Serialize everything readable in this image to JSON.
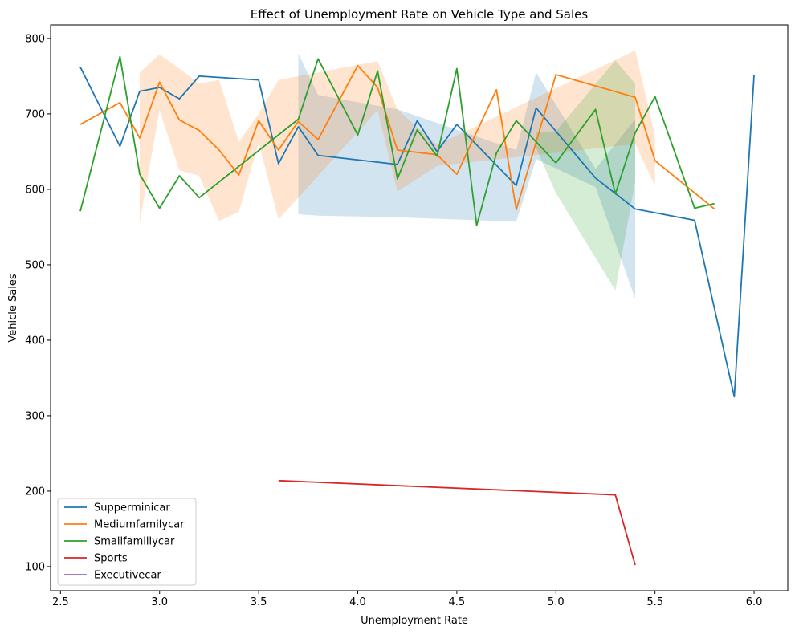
{
  "chart_data": {
    "type": "line",
    "title": "Effect of Unemployment Rate on Vehicle Type and Sales",
    "xlabel": "Unemployment Rate",
    "ylabel": "Vehicle Sales",
    "xlim": [
      2.45,
      6.17
    ],
    "ylim": [
      68,
      818
    ],
    "xticks": [
      2.5,
      3.0,
      3.5,
      4.0,
      4.5,
      5.0,
      5.5,
      6.0
    ],
    "xtick_labels": [
      "2.5",
      "3.0",
      "3.5",
      "4.0",
      "4.5",
      "5.0",
      "5.5",
      "6.0"
    ],
    "yticks": [
      100,
      200,
      300,
      400,
      500,
      600,
      700,
      800
    ],
    "ytick_labels": [
      "100",
      "200",
      "300",
      "400",
      "500",
      "600",
      "700",
      "800"
    ],
    "grid": false,
    "legend_position": "lower-left",
    "series": [
      {
        "name": "Supperminicar",
        "color": "#1f77b4",
        "x": [
          2.6,
          2.8,
          2.9,
          3.0,
          3.1,
          3.2,
          3.5,
          3.6,
          3.7,
          3.8,
          4.2,
          4.3,
          4.4,
          4.5,
          4.8,
          4.9,
          5.2,
          5.4,
          5.7,
          5.9,
          6.0
        ],
        "y": [
          762,
          657,
          730,
          735,
          720,
          750,
          745,
          634,
          683,
          645,
          633,
          691,
          650,
          686,
          605,
          708,
          615,
          574,
          559,
          325,
          751
        ],
        "band": {
          "x": [
            3.7,
            3.8,
            4.2,
            4.8,
            4.9,
            5.2,
            5.4
          ],
          "lower": [
            567,
            565,
            563,
            557,
            640,
            603,
            455
          ],
          "upper": [
            780,
            725,
            706,
            652,
            755,
            627,
            693
          ]
        }
      },
      {
        "name": "Mediumfamilycar",
        "color": "#ff7f0e",
        "x": [
          2.6,
          2.8,
          2.9,
          3.0,
          3.1,
          3.2,
          3.3,
          3.4,
          3.5,
          3.6,
          3.7,
          3.8,
          4.0,
          4.1,
          4.2,
          4.4,
          4.5,
          4.7,
          4.8,
          5.0,
          5.4,
          5.5,
          5.8
        ],
        "y": [
          686,
          715,
          668,
          742,
          692,
          678,
          652,
          619,
          691,
          652,
          690,
          666,
          764,
          735,
          652,
          646,
          620,
          732,
          573,
          752,
          722,
          638,
          574
        ],
        "band": {
          "x": [
            2.9,
            3.0,
            3.1,
            3.2,
            3.3,
            3.4,
            3.5,
            3.6,
            4.1,
            4.2,
            4.4,
            5.4,
            5.5
          ],
          "lower": [
            556,
            705,
            625,
            618,
            558,
            570,
            662,
            560,
            705,
            597,
            631,
            660,
            605
          ],
          "upper": [
            755,
            779,
            760,
            740,
            745,
            663,
            700,
            745,
            770,
            706,
            659,
            784,
            671
          ]
        }
      },
      {
        "name": "Smallfamiliycar",
        "color": "#2ca02c",
        "x": [
          2.6,
          2.8,
          2.9,
          3.0,
          3.1,
          3.2,
          3.7,
          3.8,
          4.0,
          4.1,
          4.2,
          4.3,
          4.4,
          4.5,
          4.6,
          4.7,
          4.8,
          5.0,
          5.2,
          5.3,
          5.4,
          5.5,
          5.7,
          5.8
        ],
        "y": [
          571,
          776,
          620,
          575,
          618,
          589,
          693,
          773,
          672,
          757,
          614,
          679,
          644,
          760,
          552,
          648,
          691,
          635,
          706,
          594,
          675,
          723,
          575,
          581
        ],
        "band": {
          "x": [
            4.9,
            5.0,
            5.3,
            5.4
          ],
          "lower": [
            655,
            595,
            466,
            610
          ],
          "upper": [
            675,
            677,
            771,
            740
          ]
        }
      },
      {
        "name": "Sports",
        "color": "#d62728",
        "x": [
          3.6,
          5.3,
          5.4
        ],
        "y": [
          214,
          195,
          102
        ]
      },
      {
        "name": "Executivecar",
        "color": "#9467bd",
        "x": [],
        "y": []
      }
    ]
  }
}
